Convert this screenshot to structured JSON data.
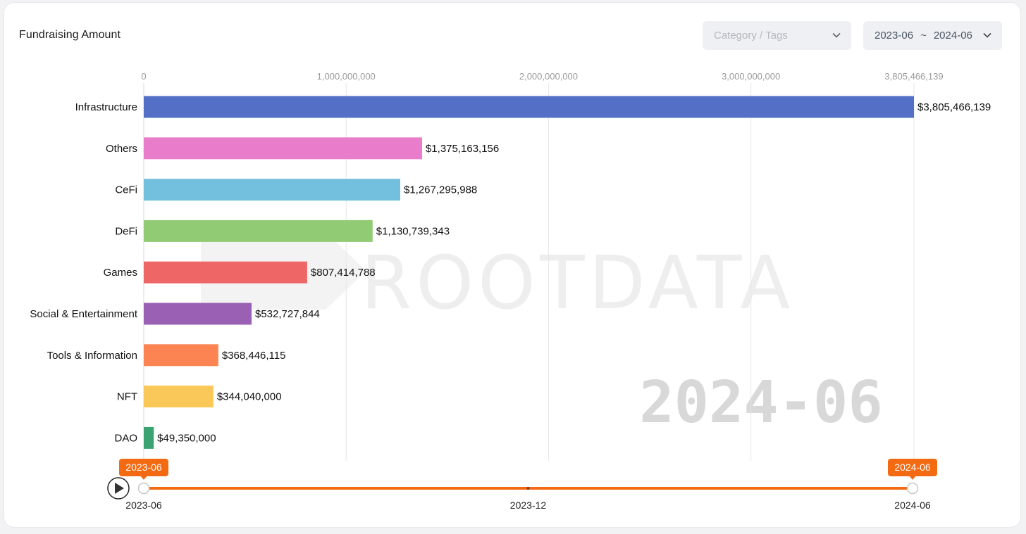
{
  "header": {
    "title": "Fundraising Amount",
    "category_placeholder": "Category / Tags",
    "date_start": "2023-06",
    "date_separator": "~",
    "date_end": "2024-06"
  },
  "chart_data": {
    "type": "bar",
    "orientation": "horizontal",
    "title": "Fundraising Amount",
    "categories": [
      "Infrastructure",
      "Others",
      "CeFi",
      "DeFi",
      "Games",
      "Social & Entertainment",
      "Tools & Information",
      "NFT",
      "DAO"
    ],
    "values": [
      3805466139,
      1375163156,
      1267295988,
      1130739343,
      807414788,
      532727844,
      368446115,
      344040000,
      49350000
    ],
    "value_labels": [
      "$3,805,466,139",
      "$1,375,163,156",
      "$1,267,295,988",
      "$1,130,739,343",
      "$807,414,788",
      "$532,727,844",
      "$368,446,115",
      "$344,040,000",
      "$49,350,000"
    ],
    "colors": [
      "#5470c6",
      "#ea7ccc",
      "#73c0de",
      "#91cc75",
      "#ee6666",
      "#9a60b4",
      "#fc8452",
      "#fac858",
      "#3ba272"
    ],
    "xticks": [
      0,
      1000000000,
      2000000000,
      3000000000,
      3805466139
    ],
    "xtick_labels": [
      "0",
      "1,000,000,000",
      "2,000,000,000",
      "3,000,000,000",
      "3,805,466,139"
    ],
    "xlim": [
      0,
      3805466139
    ],
    "xaxis_position": "top",
    "grid": true,
    "watermark": "2024-06"
  },
  "timeline": {
    "ticks": [
      "2023-06",
      "2023-12",
      "2024-06"
    ],
    "range_start": "2023-06",
    "range_end": "2024-06",
    "accent_color": "#f36a12"
  },
  "brand_watermark": "ROOTDATA"
}
